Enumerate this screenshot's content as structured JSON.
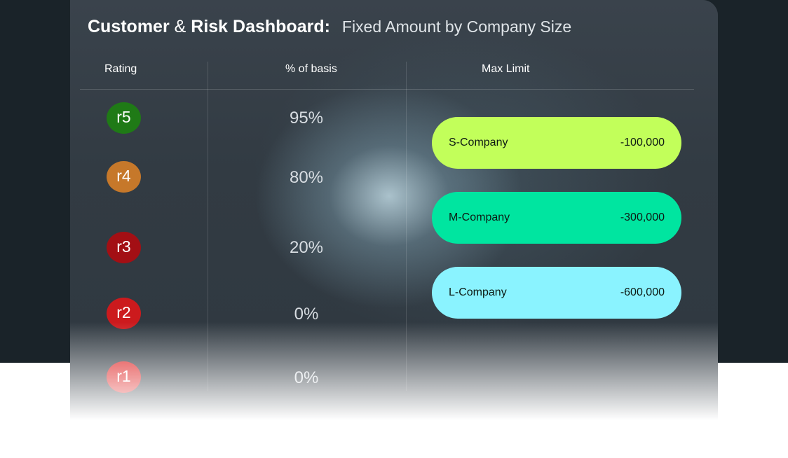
{
  "header": {
    "title_part1": "Customer",
    "title_amp": " & ",
    "title_part2": "Risk Dashboard:",
    "subtitle": "Fixed Amount by Company Size"
  },
  "columns": {
    "rating": "Rating",
    "basis": "% of basis",
    "limit": "Max Limit"
  },
  "ratings": [
    {
      "label": "r5",
      "pct": "95%",
      "color": "#1f7a16"
    },
    {
      "label": "r4",
      "pct": "80%",
      "color": "#c6782a"
    },
    {
      "label": "r3",
      "pct": "20%",
      "color": "#a30f14"
    },
    {
      "label": "r2",
      "pct": "0%",
      "color": "#cc1a1d"
    },
    {
      "label": "r1",
      "pct": "0%",
      "color": "#dd1c1c"
    }
  ],
  "limits": [
    {
      "company": "S-Company",
      "amount": "-100,000",
      "color": "#c2ff5a"
    },
    {
      "company": "M-Company",
      "amount": "-300,000",
      "color": "#00e5a0"
    },
    {
      "company": "L-Company",
      "amount": "-600,000",
      "color": "#8af3ff"
    }
  ]
}
